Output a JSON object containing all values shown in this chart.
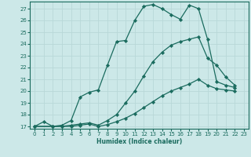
{
  "xlabel": "Humidex (Indice chaleur)",
  "xlim": [
    -0.5,
    23.5
  ],
  "ylim": [
    16.8,
    27.6
  ],
  "yticks": [
    17,
    18,
    19,
    20,
    21,
    22,
    23,
    24,
    25,
    26,
    27
  ],
  "xticks": [
    0,
    1,
    2,
    3,
    4,
    5,
    6,
    7,
    8,
    9,
    10,
    11,
    12,
    13,
    14,
    15,
    16,
    17,
    18,
    19,
    20,
    21,
    22,
    23
  ],
  "bg_color": "#cce8e8",
  "line_color": "#1a6b5e",
  "grid_color": "#b8d8d8",
  "line1_x": [
    0,
    1,
    2,
    3,
    4,
    5,
    6,
    7,
    8,
    9,
    10,
    11,
    12,
    13,
    14,
    15,
    16,
    17,
    18,
    19,
    20,
    21,
    22
  ],
  "line1_y": [
    17.0,
    17.4,
    17.0,
    17.1,
    17.5,
    19.5,
    19.9,
    20.1,
    22.2,
    24.2,
    24.3,
    26.0,
    27.2,
    27.35,
    27.0,
    26.5,
    26.1,
    27.3,
    27.0,
    24.4,
    20.8,
    20.5,
    20.3
  ],
  "line2_x": [
    0,
    2,
    3,
    4,
    5,
    6,
    7,
    8,
    9,
    10,
    11,
    12,
    13,
    14,
    15,
    16,
    17,
    18,
    19,
    20,
    21,
    22
  ],
  "line2_y": [
    17.0,
    17.0,
    17.0,
    17.1,
    17.2,
    17.3,
    17.1,
    17.5,
    18.0,
    19.0,
    20.0,
    21.3,
    22.5,
    23.3,
    23.9,
    24.2,
    24.4,
    24.6,
    22.8,
    22.2,
    21.2,
    20.5
  ],
  "line3_x": [
    0,
    2,
    3,
    4,
    5,
    6,
    7,
    8,
    9,
    10,
    11,
    12,
    13,
    14,
    15,
    16,
    17,
    18,
    19,
    20,
    21,
    22
  ],
  "line3_y": [
    17.0,
    17.0,
    17.0,
    17.0,
    17.1,
    17.2,
    17.0,
    17.15,
    17.4,
    17.7,
    18.1,
    18.6,
    19.1,
    19.6,
    20.0,
    20.3,
    20.6,
    21.0,
    20.5,
    20.2,
    20.1,
    20.0
  ]
}
